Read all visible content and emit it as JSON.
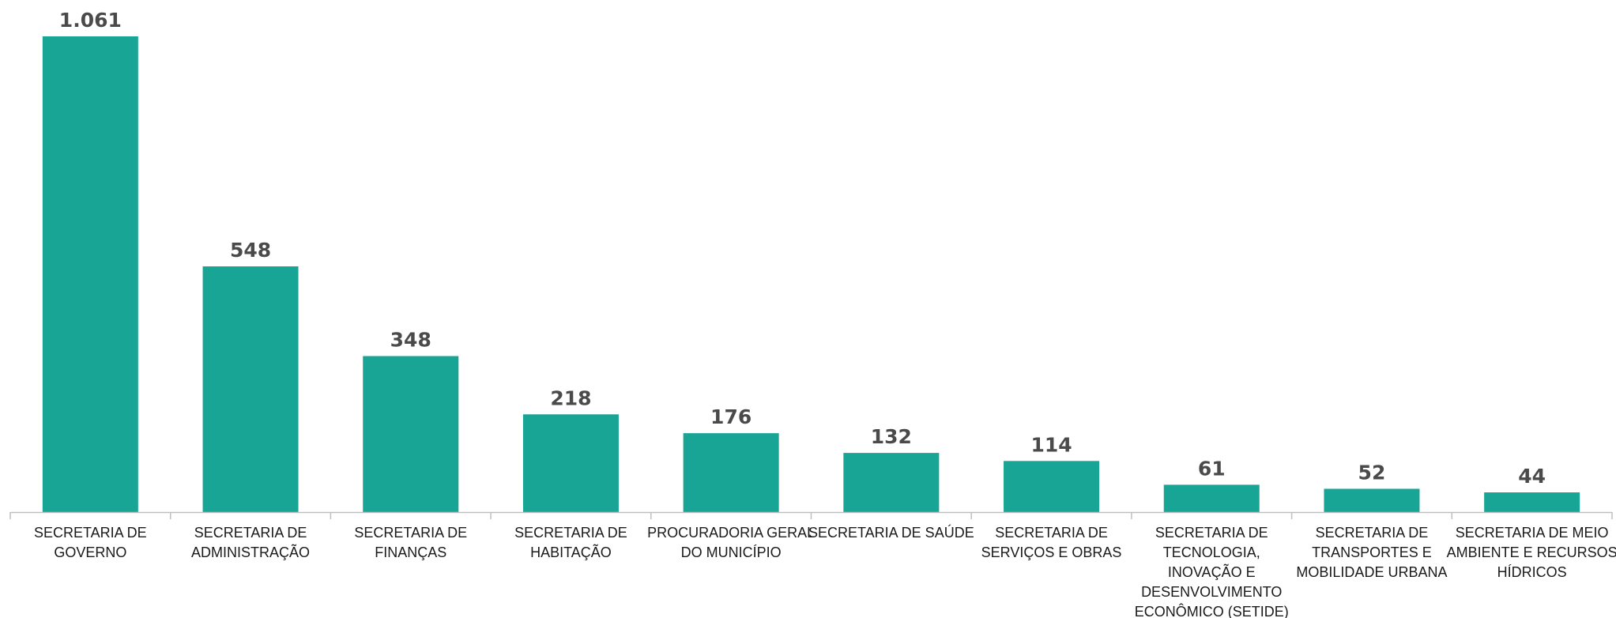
{
  "colors": {
    "bar": "#19a595",
    "axis": "#bfbfbf",
    "value_label": "#4a4a4a",
    "category_label": "#1a1a1a"
  },
  "chart_data": {
    "type": "bar",
    "categories": [
      [
        "SECRETARIA DE",
        "GOVERNO"
      ],
      [
        "SECRETARIA DE",
        "ADMINISTRAÇÃO"
      ],
      [
        "SECRETARIA DE",
        "FINANÇAS"
      ],
      [
        "SECRETARIA DE",
        "HABITAÇÃO"
      ],
      [
        "PROCURADORIA GERAL",
        "DO MUNICÍPIO"
      ],
      [
        "SECRETARIA DE SAÚDE"
      ],
      [
        "SECRETARIA DE",
        "SERVIÇOS E OBRAS"
      ],
      [
        "SECRETARIA DE",
        "TECNOLOGIA,",
        "INOVAÇÃO E",
        "DESENVOLVIMENTO",
        "ECONÔMICO (SETIDE)"
      ],
      [
        "SECRETARIA DE",
        "TRANSPORTES E",
        "MOBILIDADE URBANA"
      ],
      [
        "SECRETARIA DE MEIO",
        "AMBIENTE E RECURSOS",
        "HÍDRICOS"
      ]
    ],
    "values": [
      1061,
      548,
      348,
      218,
      176,
      132,
      114,
      61,
      52,
      44
    ],
    "value_labels": [
      "1.061",
      "548",
      "348",
      "218",
      "176",
      "132",
      "114",
      "61",
      "52",
      "44"
    ],
    "title": "",
    "xlabel": "",
    "ylabel": "",
    "ylim": [
      0,
      1061
    ],
    "grid": false,
    "legend": "none"
  }
}
